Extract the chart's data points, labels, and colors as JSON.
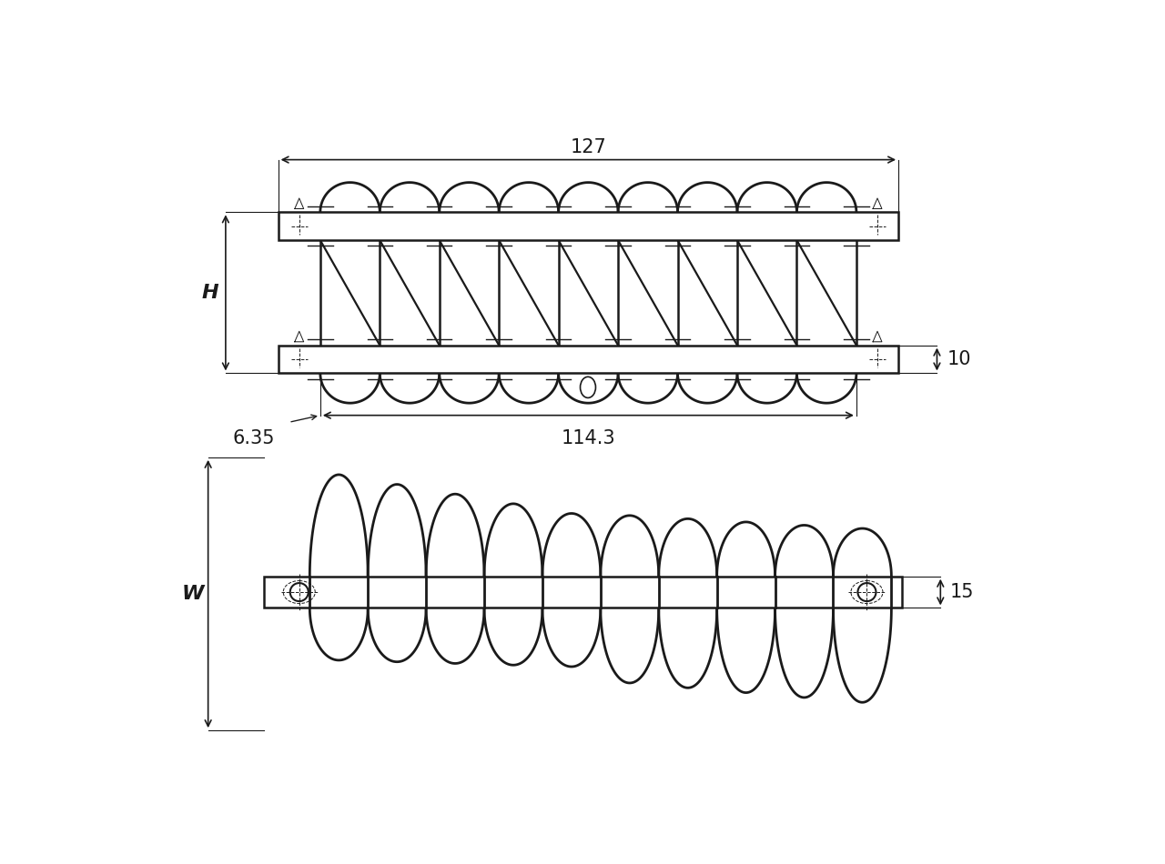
{
  "bg_color": "#ffffff",
  "line_color": "#1a1a1a",
  "wire_lw": 2.0,
  "plate_lw": 1.8,
  "dim_lw": 1.2,
  "font_size": 14,
  "figsize": [
    12.8,
    9.5
  ],
  "dpi": 100,
  "dims": {
    "top_127": "127",
    "top_114": "114.3",
    "top_6p35": "6.35",
    "top_H": "H",
    "top_10": "10",
    "bot_W": "W",
    "bot_15": "15"
  }
}
